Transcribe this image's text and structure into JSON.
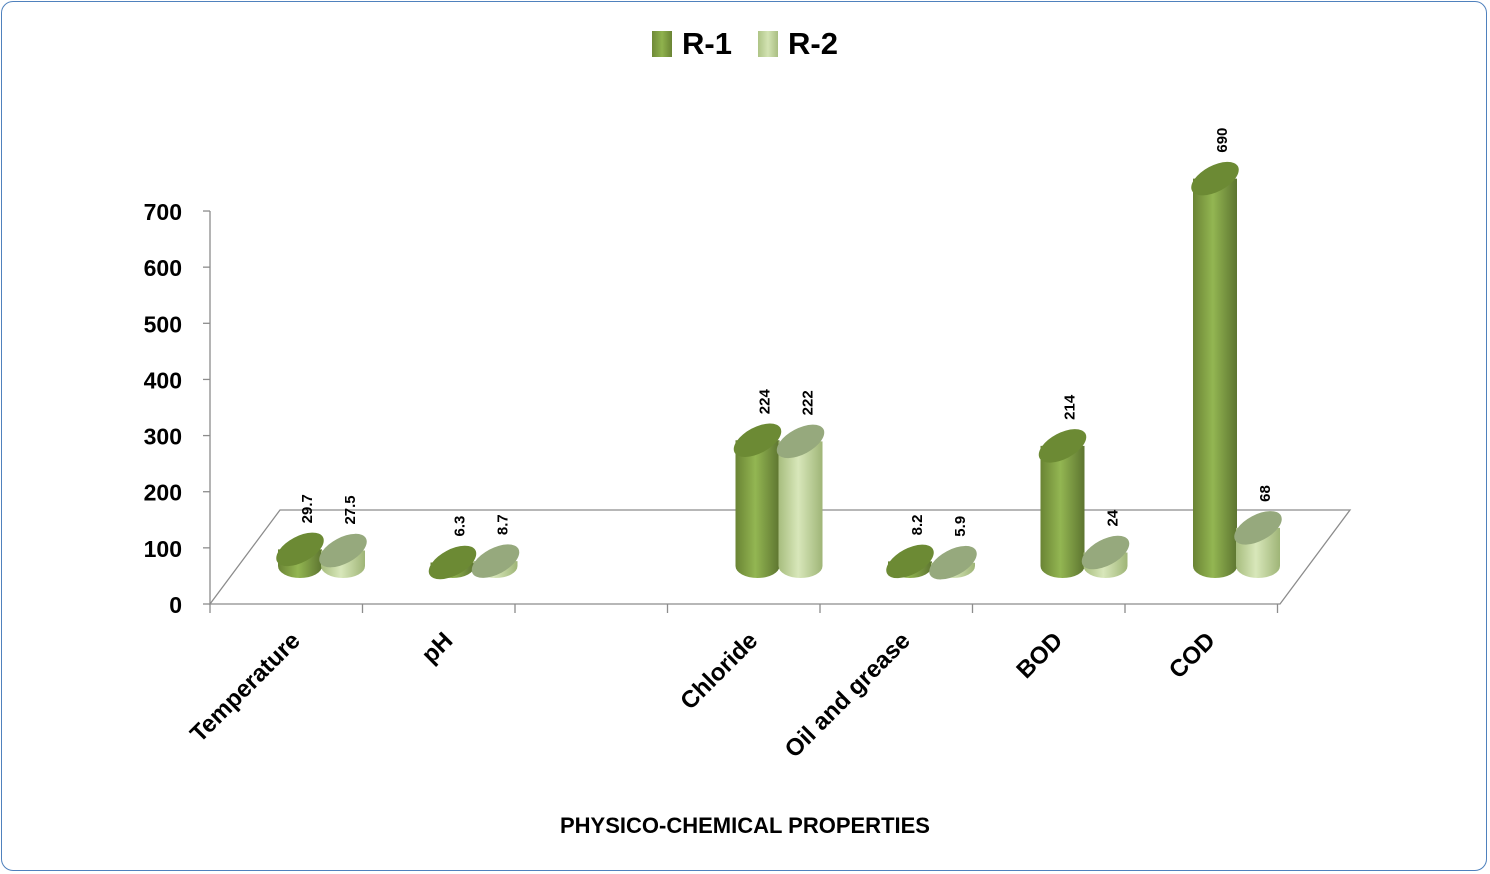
{
  "chart_data": {
    "type": "bar",
    "style": "3d-cylinder",
    "categories": [
      "Temperature",
      "pH",
      "",
      "Chloride",
      "Oil and grease",
      "BOD",
      "COD"
    ],
    "series": [
      {
        "name": "R-1",
        "values": [
          29.7,
          6.3,
          null,
          224,
          8.2,
          214,
          690
        ],
        "color": "#77933c"
      },
      {
        "name": "R-2",
        "values": [
          27.5,
          8.7,
          null,
          222,
          5.9,
          24,
          68
        ],
        "color": "#c3d69b"
      }
    ],
    "data_labels": {
      "R-1": [
        "29.7",
        "6.3",
        "",
        "224",
        "8.2",
        "214",
        "690"
      ],
      "R-2": [
        "27.5",
        "8.7",
        "",
        "222",
        "5.9",
        "24",
        "68"
      ]
    },
    "y_ticks": [
      "0",
      "100",
      "200",
      "300",
      "400",
      "500",
      "600",
      "700"
    ],
    "ylim": [
      0,
      700
    ],
    "xlabel": "PHYSICO-CHEMICAL PROPERTIES",
    "ylabel": "",
    "legend_position": "top",
    "grid": false
  },
  "legend": [
    {
      "label": "R-1",
      "color": "#77933c"
    },
    {
      "label": "R-2",
      "color": "#c3d69b"
    }
  ],
  "frame_color": "#4f81bd"
}
